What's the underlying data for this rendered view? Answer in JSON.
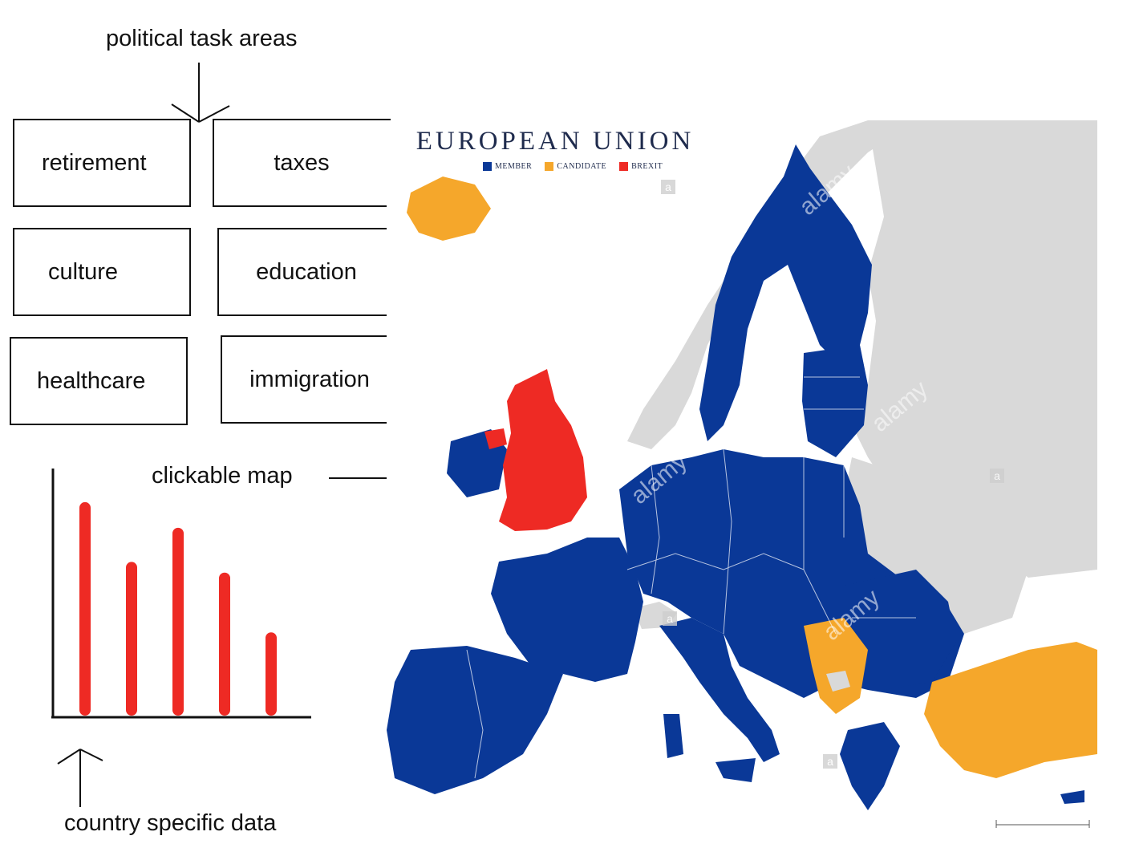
{
  "notes": {
    "task_areas": "political task areas",
    "clickable_map": "clickable map",
    "country_data": "country specific data"
  },
  "tasks": [
    {
      "label": "retirement"
    },
    {
      "label": "taxes"
    },
    {
      "label": "culture"
    },
    {
      "label": "education"
    },
    {
      "label": "healthcare"
    },
    {
      "label": "immigration"
    }
  ],
  "map": {
    "title": "EUROPEAN UNION",
    "legend": [
      {
        "label": "MEMBER",
        "color": "#0a3897"
      },
      {
        "label": "CANDIDATE",
        "color": "#f5a72b"
      },
      {
        "label": "BREXIT",
        "color": "#ee2a24"
      }
    ],
    "watermark": "alamy",
    "watermark_glyph": "a",
    "colors": {
      "member": "#0a3897",
      "candidate": "#f5a72b",
      "brexit": "#ee2a24",
      "other": "#d9d9d9"
    }
  },
  "chart_data": {
    "type": "bar",
    "categories": [
      "",
      "",
      "",
      "",
      ""
    ],
    "values": [
      100,
      72,
      88,
      67,
      39
    ],
    "ylim": [
      0,
      115
    ],
    "bar_color": "#ee2a24",
    "grid": false
  }
}
